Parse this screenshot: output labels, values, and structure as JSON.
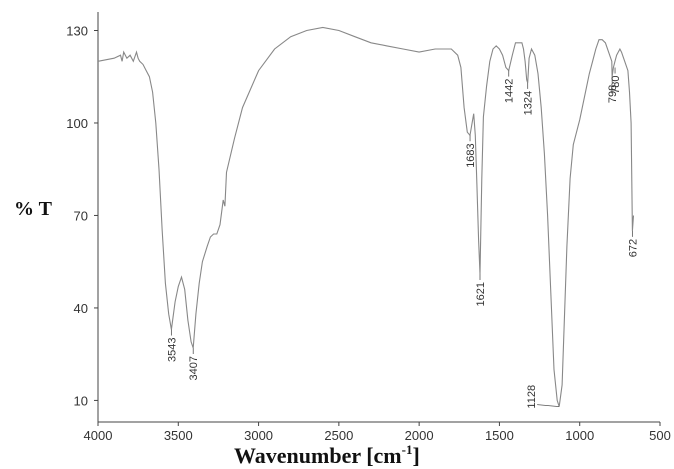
{
  "chart_data": {
    "type": "line",
    "xlabel": "Wavenumber [cm-1]",
    "xlabel_main": "Wavenumber [cm",
    "xlabel_sup": "-1",
    "xlabel_end": "]",
    "ylabel": "% T",
    "xlim": [
      4000,
      500
    ],
    "ylim": [
      3,
      136
    ],
    "x_reversed": true,
    "grid": false,
    "x_ticks": [
      4000,
      3500,
      3000,
      2500,
      2000,
      1500,
      1000,
      500
    ],
    "y_ticks": [
      10,
      40,
      70,
      100,
      130
    ],
    "line_color": "#888888",
    "series": [
      {
        "x": [
          4000,
          3900,
          3860,
          3850,
          3840,
          3820,
          3800,
          3780,
          3760,
          3750,
          3740,
          3720,
          3700,
          3680,
          3660,
          3640,
          3620,
          3600,
          3580,
          3560,
          3543,
          3520,
          3500,
          3480,
          3460,
          3440,
          3420,
          3407,
          3390,
          3370,
          3350,
          3320,
          3300,
          3280,
          3260,
          3240,
          3220,
          3210,
          3200,
          3150,
          3100,
          3000,
          2900,
          2800,
          2700,
          2600,
          2500,
          2400,
          2300,
          2200,
          2100,
          2000,
          1900,
          1800,
          1760,
          1740,
          1720,
          1700,
          1683,
          1670,
          1660,
          1650,
          1640,
          1630,
          1621,
          1610,
          1600,
          1580,
          1560,
          1540,
          1520,
          1500,
          1480,
          1460,
          1442,
          1420,
          1400,
          1380,
          1360,
          1350,
          1340,
          1330,
          1324,
          1315,
          1300,
          1280,
          1260,
          1240,
          1220,
          1200,
          1180,
          1160,
          1140,
          1128,
          1110,
          1100,
          1080,
          1060,
          1040,
          1020,
          1000,
          980,
          960,
          940,
          920,
          900,
          880,
          860,
          840,
          820,
          800,
          798,
          790,
          780,
          770,
          750,
          740,
          720,
          700,
          690,
          680,
          672,
          665
        ],
        "y": [
          120,
          121,
          122,
          120,
          123,
          121,
          122,
          120,
          123,
          121,
          120,
          119,
          117,
          115,
          110,
          100,
          85,
          65,
          48,
          38,
          33,
          42,
          47,
          50,
          46,
          36,
          29,
          27,
          38,
          48,
          55,
          60,
          63,
          64,
          64,
          67,
          75,
          73,
          84,
          95,
          105,
          117,
          124,
          128,
          130,
          131,
          130,
          128,
          126,
          125,
          124,
          123,
          124,
          124,
          122,
          118,
          105,
          97,
          96,
          100,
          103,
          96,
          80,
          62,
          51,
          82,
          102,
          112,
          120,
          124,
          125,
          124,
          122,
          118,
          117,
          122,
          126,
          126,
          126,
          124,
          120,
          114,
          113,
          121,
          124,
          122,
          116,
          105,
          90,
          70,
          45,
          20,
          10,
          8,
          15,
          30,
          60,
          82,
          93,
          97,
          101,
          106,
          111,
          116,
          120,
          124,
          127,
          127,
          126,
          123,
          120,
          115,
          118,
          120,
          122,
          124,
          123,
          120,
          117,
          110,
          100,
          65,
          70
        ]
      }
    ],
    "annotations": [
      {
        "text": "3543",
        "x": 3543,
        "y": 33,
        "pos": "below"
      },
      {
        "text": "3407",
        "x": 3407,
        "y": 27,
        "pos": "below"
      },
      {
        "text": "1683",
        "x": 1683,
        "y": 96,
        "pos": "below"
      },
      {
        "text": "1621",
        "x": 1621,
        "y": 51,
        "pos": "below"
      },
      {
        "text": "1442",
        "x": 1442,
        "y": 117,
        "pos": "below"
      },
      {
        "text": "1324",
        "x": 1324,
        "y": 113,
        "pos": "below"
      },
      {
        "text": "1128",
        "x": 1128,
        "y": 8,
        "pos": "left"
      },
      {
        "text": "798",
        "x": 798,
        "y": 115,
        "pos": "below"
      },
      {
        "text": "780",
        "x": 780,
        "y": 118,
        "pos": "below"
      },
      {
        "text": "672",
        "x": 672,
        "y": 65,
        "pos": "below"
      }
    ]
  }
}
